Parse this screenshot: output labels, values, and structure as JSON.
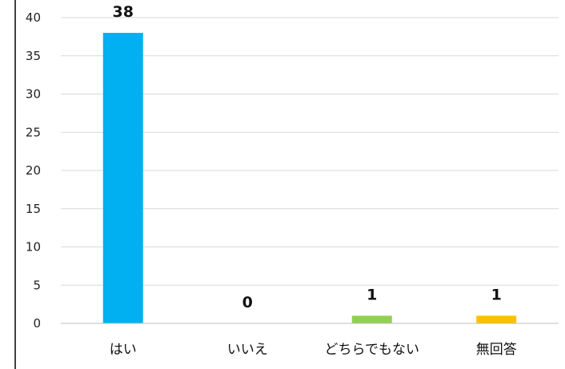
{
  "chart_data": {
    "type": "bar",
    "categories": [
      "はい",
      "いいえ",
      "どちらでもない",
      "無回答"
    ],
    "values": [
      38,
      0,
      1,
      1
    ],
    "data_labels": [
      "38",
      "0",
      "1",
      "1"
    ],
    "colors": [
      "#00b0f0",
      "#00b0f0",
      "#92d050",
      "#ffc000"
    ],
    "ylim": [
      0,
      40
    ],
    "yticks": [
      0,
      5,
      10,
      15,
      20,
      25,
      30,
      35,
      40
    ],
    "ytick_labels": [
      "0",
      "5",
      "10",
      "15",
      "20",
      "25",
      "30",
      "35",
      "40"
    ],
    "grid": true,
    "legend": "none"
  }
}
